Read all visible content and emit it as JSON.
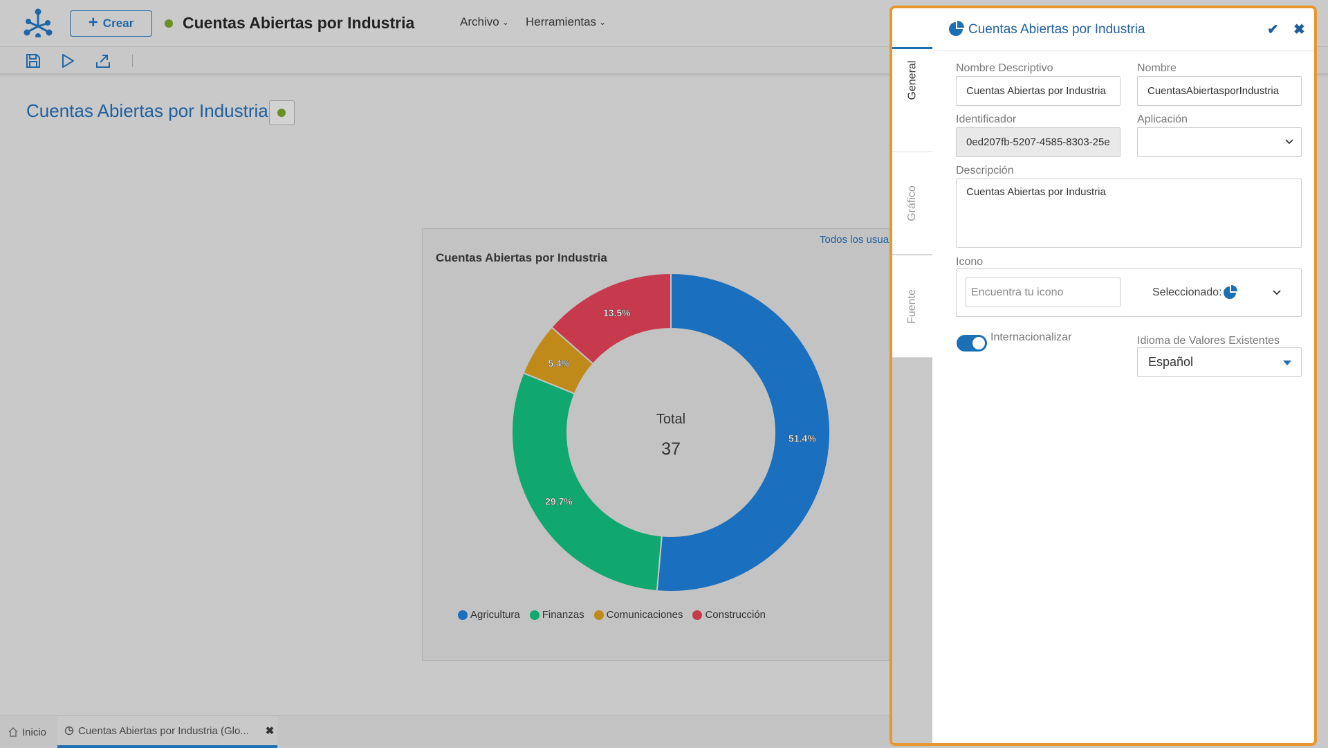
{
  "topbar": {
    "create_label": "Crear",
    "title": "Cuentas Abiertas por Industria",
    "menus": {
      "file": "Archivo",
      "tools": "Herramientas"
    }
  },
  "main": {
    "title": "Cuentas Abiertas por Industria",
    "card_link": "Todos los usua",
    "status_color": "#6a8f25"
  },
  "chart_data": {
    "type": "pie",
    "title": "Cuentas Abiertas por Industria",
    "center_label": "Total",
    "center_value": "37",
    "categories": [
      "Agricultura",
      "Finanzas",
      "Comunicaciones",
      "Construcción"
    ],
    "values": [
      51.4,
      29.7,
      5.4,
      13.5
    ],
    "value_labels": [
      "51.4%",
      "29.7%",
      "5.4%",
      "13.5%"
    ],
    "colors": [
      "#1a6fbf",
      "#10a870",
      "#c08a1a",
      "#c73a4e"
    ],
    "donut": true,
    "legend_position": "bottom"
  },
  "bottom_tabs": [
    {
      "label": "Inicio"
    },
    {
      "label": "Cuentas Abiertas por Industria (Glo..."
    }
  ],
  "panel": {
    "title": "Cuentas Abiertas por Industria",
    "tabs": [
      "General",
      "Gráfico",
      "Fuente"
    ],
    "fields": {
      "descriptive_name_label": "Nombre Descriptivo",
      "descriptive_name_value": "Cuentas Abiertas por Industria",
      "name_label": "Nombre",
      "name_value": "CuentasAbiertasporIndustria",
      "identifier_label": "Identificador",
      "identifier_value": "0ed207fb-5207-4585-8303-25e",
      "application_label": "Aplicación",
      "application_value": "",
      "description_label": "Descripción",
      "description_value": "Cuentas Abiertas por Industria",
      "icon_label": "Icono",
      "icon_search_placeholder": "Encuentra tu icono",
      "icon_selected_label": "Seleccionado:",
      "internationalize_label": "Internacionalizar",
      "language_label": "Idioma de Valores Existentes",
      "language_value": "Español"
    }
  }
}
